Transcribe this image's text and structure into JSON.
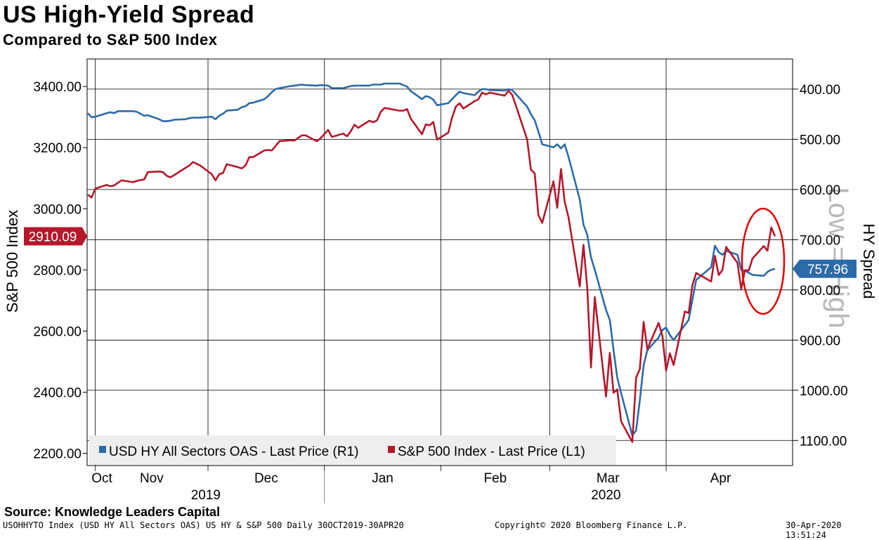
{
  "header": {
    "title": "US High-Yield Spread",
    "subtitle": "Compared to S&P 500 Index"
  },
  "footer": {
    "source": "Source: Knowledge Leaders Capital",
    "ticker_line": "USOHHYTO Index (USD HY All Sectors OAS) US HY & S&P 500  Daily 30OCT2019-30APR20",
    "copyright": "Copyright© 2020 Bloomberg Finance L.P.",
    "timestamp": "30-Apr-2020 13:51:24"
  },
  "colors": {
    "sp500": "#b5172b",
    "hy": "#2d6aa8",
    "annotation_circle": "#e00000",
    "watermark": "#b8b8b8",
    "legend_bg": "#eeeeee"
  },
  "chart_data": {
    "type": "line",
    "title": "US High-Yield Spread",
    "subtitle": "Compared to S&P 500 Index",
    "ylabel_left": "S&P 500 Index",
    "ylabel_right": "HY Spread",
    "watermark": "Low = High",
    "ylim_left": [
      2160,
      3490
    ],
    "ylim_right": [
      1150,
      340
    ],
    "right_axis_inverted": true,
    "yticks_left": [
      "2200.00",
      "2400.00",
      "2600.00",
      "2800.00",
      "3000.00",
      "3200.00",
      "3400.00"
    ],
    "yticks_right": [
      "400.00",
      "500.00",
      "600.00",
      "700.00",
      "800.00",
      "900.00",
      "1000.00",
      "1100.00"
    ],
    "x_months": [
      "Oct",
      "Nov",
      "Dec",
      "Jan",
      "Feb",
      "Mar",
      "Apr"
    ],
    "x_years": [
      "2019",
      "2020"
    ],
    "date_range": [
      "2019-10-30",
      "2020-04-30"
    ],
    "last_value_left": "2910.09",
    "last_value_right": "757.96",
    "grid": true,
    "legend_position": "bottom-left",
    "series": [
      {
        "name": "USD HY All Sectors OAS - Last Price (R1)",
        "axis": "right",
        "points": [
          [
            "2019-10-30",
            448
          ],
          [
            "2019-10-31",
            456
          ],
          [
            "2019-11-01",
            455
          ],
          [
            "2019-11-04",
            448
          ],
          [
            "2019-11-05",
            446
          ],
          [
            "2019-11-06",
            448
          ],
          [
            "2019-11-07",
            444
          ],
          [
            "2019-11-08",
            444
          ],
          [
            "2019-11-11",
            444
          ],
          [
            "2019-11-12",
            445
          ],
          [
            "2019-11-13",
            449
          ],
          [
            "2019-11-14",
            453
          ],
          [
            "2019-11-15",
            452
          ],
          [
            "2019-11-18",
            460
          ],
          [
            "2019-11-19",
            464
          ],
          [
            "2019-11-20",
            464
          ],
          [
            "2019-11-21",
            463
          ],
          [
            "2019-11-22",
            461
          ],
          [
            "2019-11-25",
            460
          ],
          [
            "2019-11-26",
            458
          ],
          [
            "2019-11-27",
            457
          ],
          [
            "2019-11-29",
            457
          ],
          [
            "2019-12-02",
            455
          ],
          [
            "2019-12-03",
            460
          ],
          [
            "2019-12-04",
            453
          ],
          [
            "2019-12-05",
            449
          ],
          [
            "2019-12-06",
            443
          ],
          [
            "2019-12-09",
            441
          ],
          [
            "2019-12-10",
            436
          ],
          [
            "2019-12-11",
            434
          ],
          [
            "2019-12-12",
            428
          ],
          [
            "2019-12-13",
            427
          ],
          [
            "2019-12-16",
            420
          ],
          [
            "2019-12-17",
            414
          ],
          [
            "2019-12-18",
            406
          ],
          [
            "2019-12-19",
            400
          ],
          [
            "2019-12-20",
            398
          ],
          [
            "2019-12-23",
            394
          ],
          [
            "2019-12-24",
            393
          ],
          [
            "2019-12-26",
            391
          ],
          [
            "2019-12-27",
            392
          ],
          [
            "2019-12-30",
            393
          ],
          [
            "2019-12-31",
            392
          ],
          [
            "2020-01-02",
            393
          ],
          [
            "2020-01-03",
            398
          ],
          [
            "2020-01-06",
            398
          ],
          [
            "2020-01-07",
            396
          ],
          [
            "2020-01-08",
            394
          ],
          [
            "2020-01-09",
            393
          ],
          [
            "2020-01-10",
            393
          ],
          [
            "2020-01-13",
            393
          ],
          [
            "2020-01-14",
            391
          ],
          [
            "2020-01-15",
            391
          ],
          [
            "2020-01-16",
            391
          ],
          [
            "2020-01-17",
            389
          ],
          [
            "2020-01-21",
            389
          ],
          [
            "2020-01-22",
            392
          ],
          [
            "2020-01-23",
            395
          ],
          [
            "2020-01-24",
            404
          ],
          [
            "2020-01-27",
            420
          ],
          [
            "2020-01-28",
            414
          ],
          [
            "2020-01-29",
            416
          ],
          [
            "2020-01-30",
            421
          ],
          [
            "2020-01-31",
            432
          ],
          [
            "2020-02-03",
            428
          ],
          [
            "2020-02-04",
            420
          ],
          [
            "2020-02-05",
            412
          ],
          [
            "2020-02-06",
            405
          ],
          [
            "2020-02-07",
            408
          ],
          [
            "2020-02-10",
            412
          ],
          [
            "2020-02-11",
            405
          ],
          [
            "2020-02-12",
            400
          ],
          [
            "2020-02-13",
            400
          ],
          [
            "2020-02-14",
            402
          ],
          [
            "2020-02-18",
            403
          ],
          [
            "2020-02-19",
            400
          ],
          [
            "2020-02-20",
            402
          ],
          [
            "2020-02-21",
            410
          ],
          [
            "2020-02-24",
            435
          ],
          [
            "2020-02-25",
            450
          ],
          [
            "2020-02-26",
            462
          ],
          [
            "2020-02-27",
            485
          ],
          [
            "2020-02-28",
            510
          ],
          [
            "2020-03-02",
            516
          ],
          [
            "2020-03-03",
            510
          ],
          [
            "2020-03-04",
            518
          ],
          [
            "2020-03-05",
            510
          ],
          [
            "2020-03-06",
            535
          ],
          [
            "2020-03-09",
            620
          ],
          [
            "2020-03-10",
            670
          ],
          [
            "2020-03-11",
            690
          ],
          [
            "2020-03-12",
            735
          ],
          [
            "2020-03-13",
            760
          ],
          [
            "2020-03-16",
            840
          ],
          [
            "2020-03-17",
            860
          ],
          [
            "2020-03-18",
            920
          ],
          [
            "2020-03-19",
            975
          ],
          [
            "2020-03-20",
            1005
          ],
          [
            "2020-03-23",
            1090
          ],
          [
            "2020-03-24",
            1080
          ],
          [
            "2020-03-25",
            1020
          ],
          [
            "2020-03-26",
            950
          ],
          [
            "2020-03-27",
            920
          ],
          [
            "2020-03-30",
            895
          ],
          [
            "2020-03-31",
            880
          ],
          [
            "2020-04-01",
            875
          ],
          [
            "2020-04-02",
            890
          ],
          [
            "2020-04-03",
            900
          ],
          [
            "2020-04-06",
            870
          ],
          [
            "2020-04-07",
            860
          ],
          [
            "2020-04-08",
            820
          ],
          [
            "2020-04-09",
            780
          ],
          [
            "2020-04-13",
            755
          ],
          [
            "2020-04-14",
            712
          ],
          [
            "2020-04-15",
            725
          ],
          [
            "2020-04-16",
            730
          ],
          [
            "2020-04-17",
            722
          ],
          [
            "2020-04-20",
            730
          ],
          [
            "2020-04-21",
            760
          ],
          [
            "2020-04-22",
            762
          ],
          [
            "2020-04-23",
            766
          ],
          [
            "2020-04-24",
            770
          ],
          [
            "2020-04-27",
            772
          ],
          [
            "2020-04-28",
            764
          ],
          [
            "2020-04-29",
            760
          ],
          [
            "2020-04-30",
            758
          ]
        ]
      },
      {
        "name": "S&P 500 Index - Last Price (L1)",
        "axis": "left",
        "points": [
          [
            "2019-10-30",
            3046
          ],
          [
            "2019-10-31",
            3037
          ],
          [
            "2019-11-01",
            3066
          ],
          [
            "2019-11-04",
            3078
          ],
          [
            "2019-11-05",
            3074
          ],
          [
            "2019-11-06",
            3076
          ],
          [
            "2019-11-07",
            3085
          ],
          [
            "2019-11-08",
            3093
          ],
          [
            "2019-11-11",
            3087
          ],
          [
            "2019-11-12",
            3091
          ],
          [
            "2019-11-13",
            3094
          ],
          [
            "2019-11-14",
            3096
          ],
          [
            "2019-11-15",
            3120
          ],
          [
            "2019-11-18",
            3122
          ],
          [
            "2019-11-19",
            3120
          ],
          [
            "2019-11-20",
            3108
          ],
          [
            "2019-11-21",
            3103
          ],
          [
            "2019-11-22",
            3110
          ],
          [
            "2019-11-25",
            3134
          ],
          [
            "2019-11-26",
            3141
          ],
          [
            "2019-11-27",
            3153
          ],
          [
            "2019-11-29",
            3141
          ],
          [
            "2019-12-02",
            3113
          ],
          [
            "2019-12-03",
            3093
          ],
          [
            "2019-12-04",
            3113
          ],
          [
            "2019-12-05",
            3117
          ],
          [
            "2019-12-06",
            3146
          ],
          [
            "2019-12-09",
            3136
          ],
          [
            "2019-12-10",
            3132
          ],
          [
            "2019-12-11",
            3142
          ],
          [
            "2019-12-12",
            3169
          ],
          [
            "2019-12-13",
            3169
          ],
          [
            "2019-12-16",
            3191
          ],
          [
            "2019-12-17",
            3192
          ],
          [
            "2019-12-18",
            3191
          ],
          [
            "2019-12-19",
            3205
          ],
          [
            "2019-12-20",
            3221
          ],
          [
            "2019-12-23",
            3224
          ],
          [
            "2019-12-24",
            3223
          ],
          [
            "2019-12-26",
            3240
          ],
          [
            "2019-12-27",
            3240
          ],
          [
            "2019-12-30",
            3221
          ],
          [
            "2019-12-31",
            3231
          ],
          [
            "2020-01-02",
            3258
          ],
          [
            "2020-01-03",
            3235
          ],
          [
            "2020-01-06",
            3246
          ],
          [
            "2020-01-07",
            3237
          ],
          [
            "2020-01-08",
            3253
          ],
          [
            "2020-01-09",
            3275
          ],
          [
            "2020-01-10",
            3265
          ],
          [
            "2020-01-13",
            3288
          ],
          [
            "2020-01-14",
            3283
          ],
          [
            "2020-01-15",
            3289
          ],
          [
            "2020-01-16",
            3317
          ],
          [
            "2020-01-17",
            3330
          ],
          [
            "2020-01-21",
            3321
          ],
          [
            "2020-01-22",
            3321
          ],
          [
            "2020-01-23",
            3326
          ],
          [
            "2020-01-24",
            3295
          ],
          [
            "2020-01-27",
            3244
          ],
          [
            "2020-01-28",
            3276
          ],
          [
            "2020-01-29",
            3273
          ],
          [
            "2020-01-30",
            3284
          ],
          [
            "2020-01-31",
            3226
          ],
          [
            "2020-02-03",
            3249
          ],
          [
            "2020-02-04",
            3298
          ],
          [
            "2020-02-05",
            3334
          ],
          [
            "2020-02-06",
            3345
          ],
          [
            "2020-02-07",
            3328
          ],
          [
            "2020-02-10",
            3352
          ],
          [
            "2020-02-11",
            3358
          ],
          [
            "2020-02-12",
            3380
          ],
          [
            "2020-02-13",
            3374
          ],
          [
            "2020-02-14",
            3380
          ],
          [
            "2020-02-18",
            3370
          ],
          [
            "2020-02-19",
            3386
          ],
          [
            "2020-02-20",
            3373
          ],
          [
            "2020-02-21",
            3338
          ],
          [
            "2020-02-24",
            3226
          ],
          [
            "2020-02-25",
            3128
          ],
          [
            "2020-02-26",
            3116
          ],
          [
            "2020-02-27",
            2979
          ],
          [
            "2020-02-28",
            2954
          ],
          [
            "2020-03-02",
            3090
          ],
          [
            "2020-03-03",
            3003
          ],
          [
            "2020-03-04",
            3130
          ],
          [
            "2020-03-05",
            3023
          ],
          [
            "2020-03-06",
            2972
          ],
          [
            "2020-03-09",
            2746
          ],
          [
            "2020-03-10",
            2882
          ],
          [
            "2020-03-11",
            2741
          ],
          [
            "2020-03-12",
            2481
          ],
          [
            "2020-03-13",
            2711
          ],
          [
            "2020-03-16",
            2386
          ],
          [
            "2020-03-17",
            2529
          ],
          [
            "2020-03-18",
            2398
          ],
          [
            "2020-03-19",
            2409
          ],
          [
            "2020-03-20",
            2305
          ],
          [
            "2020-03-23",
            2237
          ],
          [
            "2020-03-24",
            2447
          ],
          [
            "2020-03-25",
            2476
          ],
          [
            "2020-03-26",
            2630
          ],
          [
            "2020-03-27",
            2541
          ],
          [
            "2020-03-30",
            2627
          ],
          [
            "2020-03-31",
            2585
          ],
          [
            "2020-04-01",
            2471
          ],
          [
            "2020-04-02",
            2527
          ],
          [
            "2020-04-03",
            2489
          ],
          [
            "2020-04-06",
            2664
          ],
          [
            "2020-04-07",
            2659
          ],
          [
            "2020-04-08",
            2750
          ],
          [
            "2020-04-09",
            2790
          ],
          [
            "2020-04-13",
            2762
          ],
          [
            "2020-04-14",
            2846
          ],
          [
            "2020-04-15",
            2783
          ],
          [
            "2020-04-16",
            2800
          ],
          [
            "2020-04-17",
            2875
          ],
          [
            "2020-04-20",
            2823
          ],
          [
            "2020-04-21",
            2737
          ],
          [
            "2020-04-22",
            2799
          ],
          [
            "2020-04-23",
            2798
          ],
          [
            "2020-04-24",
            2837
          ],
          [
            "2020-04-27",
            2878
          ],
          [
            "2020-04-28",
            2863
          ],
          [
            "2020-04-29",
            2939
          ],
          [
            "2020-04-30",
            2910
          ]
        ]
      }
    ]
  }
}
